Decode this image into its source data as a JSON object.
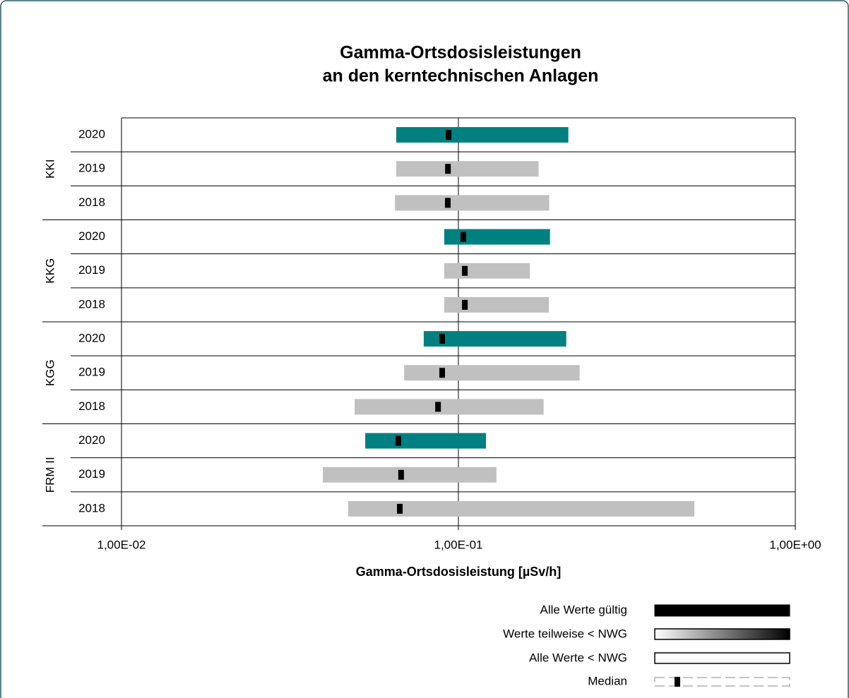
{
  "chart_data": {
    "type": "range-bar",
    "title": [
      "Gamma-Ortsdosisleistungen",
      "an den kerntechnischen Anlagen"
    ],
    "xlabel": "Gamma-Ortsdosisleistung [µSv/h]",
    "xscale": "log",
    "xlim": [
      0.01,
      1
    ],
    "xticks": [
      {
        "value": 0.01,
        "label": "1,00E-02"
      },
      {
        "value": 0.1,
        "label": "1,00E-01"
      },
      {
        "value": 1,
        "label": "1,00E+00"
      }
    ],
    "grid": true,
    "median_color": "#000000",
    "groups": [
      {
        "name": "KKI",
        "rows": [
          {
            "category": "2020",
            "min": 0.0654,
            "max": 0.212,
            "median": 0.0935,
            "color": "#008080"
          },
          {
            "category": "2019",
            "min": 0.0654,
            "max": 0.173,
            "median": 0.0931,
            "color": "#c0c0c0"
          },
          {
            "category": "2018",
            "min": 0.0648,
            "max": 0.186,
            "median": 0.093,
            "color": "#c0c0c0"
          }
        ]
      },
      {
        "name": "KKG",
        "rows": [
          {
            "category": "2020",
            "min": 0.0908,
            "max": 0.187,
            "median": 0.1034,
            "color": "#008080"
          },
          {
            "category": "2019",
            "min": 0.0908,
            "max": 0.163,
            "median": 0.1045,
            "color": "#c0c0c0"
          },
          {
            "category": "2018",
            "min": 0.0908,
            "max": 0.1855,
            "median": 0.1045,
            "color": "#c0c0c0"
          }
        ]
      },
      {
        "name": "KGG",
        "rows": [
          {
            "category": "2020",
            "min": 0.0789,
            "max": 0.209,
            "median": 0.0895,
            "color": "#008080"
          },
          {
            "category": "2019",
            "min": 0.069,
            "max": 0.229,
            "median": 0.0895,
            "color": "#c0c0c0"
          },
          {
            "category": "2018",
            "min": 0.0492,
            "max": 0.179,
            "median": 0.087,
            "color": "#c0c0c0"
          }
        ]
      },
      {
        "name": "FRM II",
        "rows": [
          {
            "category": "2020",
            "min": 0.0529,
            "max": 0.1207,
            "median": 0.0663,
            "color": "#008080"
          },
          {
            "category": "2019",
            "min": 0.0396,
            "max": 0.1297,
            "median": 0.0676,
            "color": "#c0c0c0"
          },
          {
            "category": "2018",
            "min": 0.0471,
            "max": 0.5016,
            "median": 0.067,
            "color": "#c0c0c0"
          }
        ]
      }
    ],
    "legend": [
      "Alle Werte gültig",
      "Werte teilweise < NWG",
      "Alle Werte < NWG",
      "Median"
    ]
  }
}
